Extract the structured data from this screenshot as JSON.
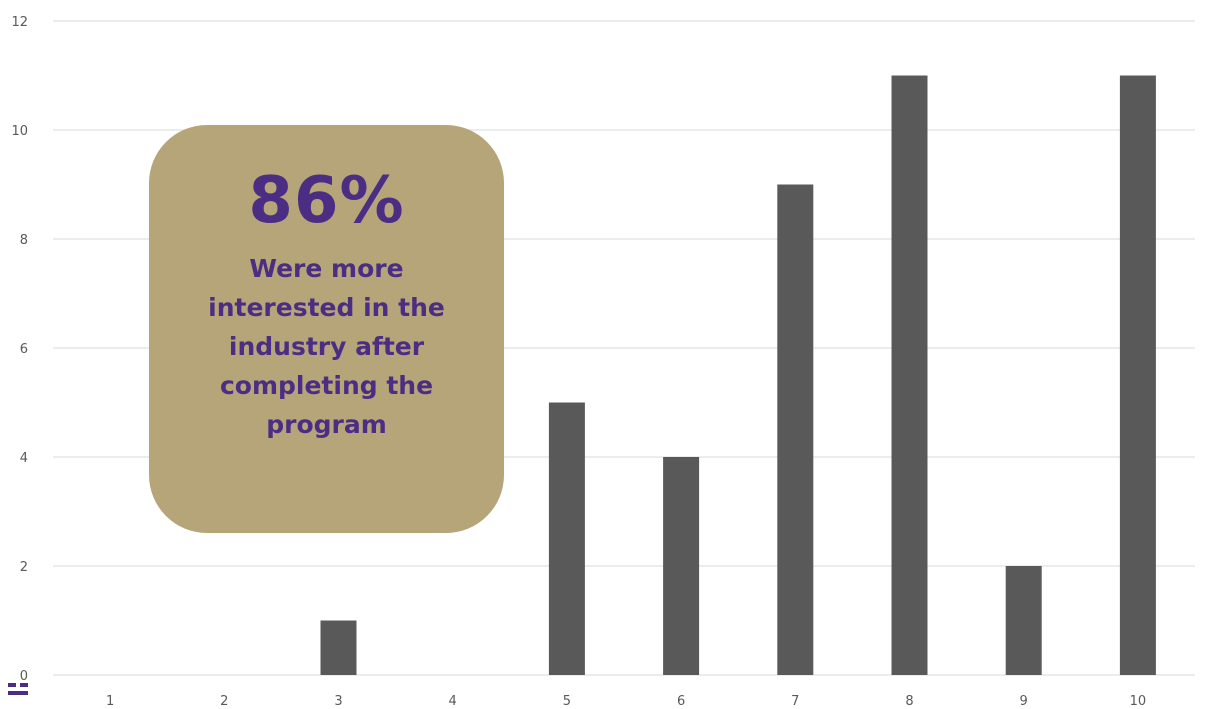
{
  "chart_data": {
    "type": "bar",
    "categories": [
      "1",
      "2",
      "3",
      "4",
      "5",
      "6",
      "7",
      "8",
      "9",
      "10"
    ],
    "values": [
      0,
      0,
      1,
      0,
      5,
      4,
      9,
      11,
      2,
      11
    ],
    "ylim": [
      0,
      12
    ],
    "yticks": [
      "0",
      "2",
      "4",
      "6",
      "8",
      "10",
      "12"
    ],
    "grid": true,
    "bar_color": "#595959",
    "grid_color": "#d9d9d9"
  },
  "callout": {
    "stat": "86%",
    "description": "Were more interested in the industry after completing the program",
    "background_color": "#b7a57a",
    "text_color": "#4b2e83"
  }
}
